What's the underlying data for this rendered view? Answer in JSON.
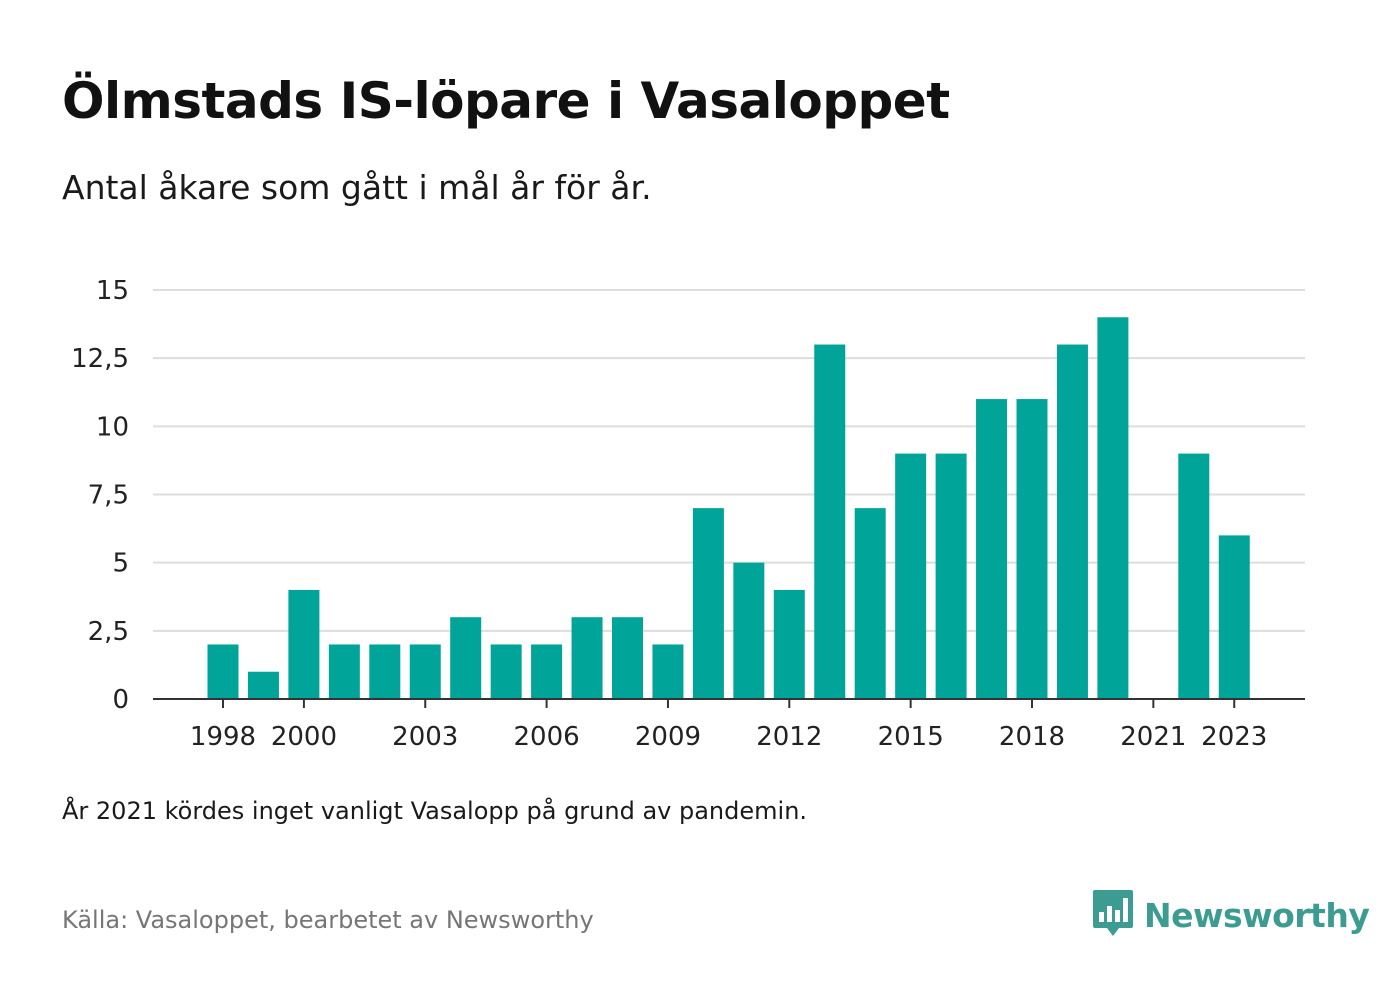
{
  "title": "Ölmstads IS-löpare i Vasaloppet",
  "subtitle": "Antal åkare som gått i mål år för år.",
  "note": "År 2021 kördes inget vanligt Vasalopp på grund av pandemin.",
  "source": "Källa: Vasaloppet, bearbetet av Newsworthy",
  "logo": {
    "text": "Newsworthy",
    "icon": "bar-chart-speech-bubble-icon",
    "color": "#3d9c91"
  },
  "chart_data": {
    "type": "bar",
    "title": "Ölmstads IS-löpare i Vasaloppet",
    "subtitle": "Antal åkare som gått i mål år för år.",
    "xlabel": "",
    "ylabel": "",
    "ylim": [
      0,
      15
    ],
    "grid": true,
    "bar_color": "#00a499",
    "categories": [
      "1998",
      "1999",
      "2000",
      "2001",
      "2002",
      "2003",
      "2004",
      "2005",
      "2006",
      "2007",
      "2008",
      "2009",
      "2010",
      "2011",
      "2012",
      "2013",
      "2014",
      "2015",
      "2016",
      "2017",
      "2018",
      "2019",
      "2020",
      "2021",
      "2022",
      "2023"
    ],
    "values": [
      2,
      1,
      4,
      2,
      2,
      2,
      3,
      2,
      2,
      3,
      3,
      2,
      7,
      5,
      4,
      13,
      7,
      9,
      9,
      11,
      11,
      13,
      14,
      null,
      9,
      6
    ],
    "y_ticks": [
      {
        "value": 0,
        "label": "0"
      },
      {
        "value": 2.5,
        "label": "2,5"
      },
      {
        "value": 5,
        "label": "5"
      },
      {
        "value": 7.5,
        "label": "7,5"
      },
      {
        "value": 10,
        "label": "10"
      },
      {
        "value": 12.5,
        "label": "12,5"
      },
      {
        "value": 15,
        "label": "15"
      }
    ],
    "x_ticks": [
      "1998",
      "2000",
      "2003",
      "2006",
      "2009",
      "2012",
      "2015",
      "2018",
      "2021",
      "2023"
    ]
  }
}
